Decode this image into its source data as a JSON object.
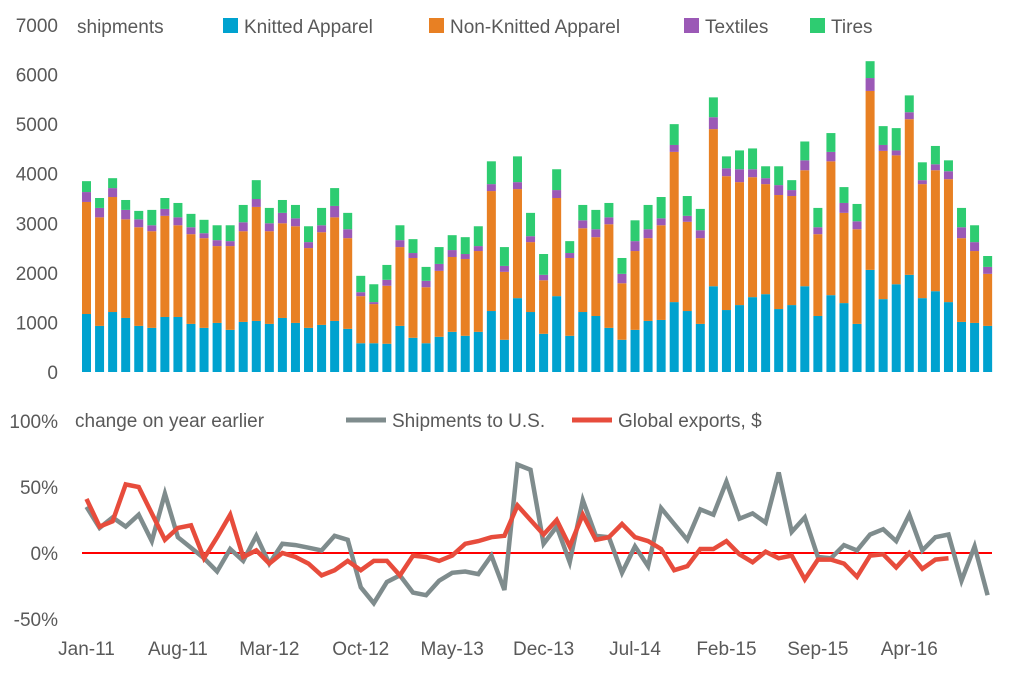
{
  "chart_data": [
    {
      "type": "bar",
      "stacked": true,
      "title": "shipments",
      "ylim": [
        0,
        7000
      ],
      "yticks": [
        "0",
        "1000",
        "2000",
        "3000",
        "4000",
        "5000",
        "6000",
        "7000"
      ],
      "legend_position": "top",
      "colors": {
        "Knitted Apparel": "#00a2cf",
        "Non-Knitted Apparel": "#e88023",
        "Textiles": "#9b59b6",
        "Tires": "#2ecc71"
      },
      "series": [
        {
          "name": "Knitted Apparel",
          "values": [
            1170,
            930,
            1210,
            1090,
            930,
            890,
            1110,
            1110,
            970,
            890,
            990,
            850,
            1010,
            1030,
            970,
            1090,
            990,
            890,
            950,
            1030,
            870,
            580,
            580,
            570,
            930,
            690,
            580,
            710,
            810,
            730,
            810,
            1230,
            650,
            1490,
            1210,
            770,
            1530,
            730,
            1210,
            1130,
            890,
            650,
            850,
            1030,
            1050,
            1410,
            1230,
            970,
            1730,
            1250,
            1350,
            1510,
            1570,
            1270,
            1350,
            1730,
            1130,
            1550,
            1390,
            970,
            2060,
            1470,
            1770,
            1960,
            1490,
            1630,
            1410,
            1010,
            990,
            930
          ]
        },
        {
          "name": "Non-Knitted Apparel",
          "values": [
            2260,
            2190,
            2320,
            1990,
            1990,
            1950,
            2040,
            1850,
            1810,
            1810,
            1550,
            1690,
            1830,
            2300,
            1870,
            1910,
            1950,
            1610,
            1870,
            2090,
            1830,
            950,
            790,
            1170,
            1590,
            1610,
            1130,
            1330,
            1510,
            1550,
            1630,
            2420,
            1370,
            2200,
            1410,
            1080,
            1980,
            1570,
            1690,
            1590,
            2090,
            1140,
            1590,
            1670,
            1910,
            3030,
            1800,
            1730,
            3170,
            2700,
            2480,
            2420,
            2220,
            2300,
            2200,
            2340,
            1650,
            2700,
            1820,
            1910,
            3610,
            2990,
            2600,
            3140,
            2300,
            2440,
            2480,
            1690,
            1450,
            1050
          ]
        },
        {
          "name": "Textiles",
          "values": [
            200,
            190,
            180,
            190,
            160,
            120,
            140,
            160,
            140,
            100,
            120,
            100,
            180,
            160,
            160,
            210,
            160,
            120,
            140,
            230,
            180,
            80,
            40,
            120,
            140,
            100,
            130,
            140,
            140,
            100,
            100,
            140,
            120,
            140,
            120,
            110,
            160,
            100,
            160,
            160,
            140,
            190,
            200,
            180,
            140,
            140,
            120,
            160,
            240,
            160,
            260,
            160,
            120,
            200,
            120,
            200,
            140,
            190,
            200,
            160,
            260,
            120,
            100,
            140,
            80,
            120,
            160,
            220,
            180,
            140
          ]
        },
        {
          "name": "Tires",
          "values": [
            220,
            200,
            200,
            200,
            170,
            310,
            220,
            290,
            270,
            270,
            300,
            320,
            350,
            380,
            310,
            260,
            270,
            320,
            350,
            360,
            330,
            330,
            360,
            300,
            300,
            280,
            280,
            340,
            300,
            340,
            400,
            460,
            380,
            520,
            470,
            420,
            420,
            240,
            310,
            390,
            290,
            320,
            420,
            490,
            430,
            420,
            400,
            430,
            400,
            240,
            380,
            420,
            240,
            380,
            200,
            380,
            390,
            380,
            320,
            350,
            340,
            380,
            450,
            340,
            360,
            370,
            220,
            390,
            340,
            220
          ]
        }
      ]
    },
    {
      "type": "line",
      "title": "change on year earlier",
      "ylim": [
        -50,
        100
      ],
      "yticks": [
        "-50%",
        "0%",
        "50%",
        "100%"
      ],
      "legend_position": "top",
      "x_start": "Jan-11",
      "xtick_labels": [
        "Jan-11",
        "Aug-11",
        "Mar-12",
        "Oct-12",
        "May-13",
        "Dec-13",
        "Jul-14",
        "Feb-15",
        "Sep-15",
        "Apr-16"
      ],
      "colors": {
        "Shipments to U.S.": "#7f8c8d",
        "Global exports, $": "#e74c3c",
        "zero": "#ff0000"
      },
      "series": [
        {
          "name": "Shipments to U.S.",
          "values": [
            35,
            19,
            27,
            20,
            29,
            9,
            45,
            12,
            4,
            -4,
            -14,
            3,
            -6,
            13,
            -8,
            7,
            6,
            4,
            2,
            13,
            10,
            -26,
            -38,
            -22,
            -17,
            -30,
            -32,
            -21,
            -15,
            -14,
            -16,
            -2,
            -28,
            67,
            63,
            7,
            20,
            -7,
            40,
            13,
            12,
            -15,
            5,
            -10,
            34,
            22,
            10,
            33,
            29,
            54,
            26,
            30,
            23,
            61,
            16,
            27,
            -3,
            -4,
            6,
            2,
            14,
            18,
            9,
            29,
            2,
            12,
            14,
            -21,
            5,
            -32
          ]
        },
        {
          "name": "Global exports, $",
          "values": [
            41,
            20,
            24,
            52,
            50,
            30,
            10,
            19,
            21,
            -4,
            12,
            29,
            -3,
            2,
            -8,
            0,
            -3,
            -8,
            -17,
            -13,
            -6,
            -13,
            -6,
            -6,
            -17,
            -2,
            -3,
            -6,
            -2,
            7,
            9,
            12,
            13,
            36,
            25,
            14,
            25,
            5,
            29,
            10,
            12,
            22,
            12,
            9,
            3,
            -13,
            -10,
            3,
            3,
            9,
            -1,
            -7,
            1,
            -4,
            -2,
            -20,
            -5,
            -5,
            -8,
            -18,
            -2,
            -1,
            -11,
            0,
            -12,
            -5,
            -4
          ]
        }
      ]
    }
  ]
}
